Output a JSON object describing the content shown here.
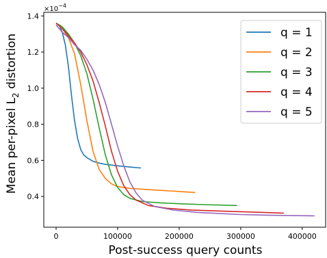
{
  "chart_data": {
    "type": "line",
    "title": "",
    "xlabel": "Post-success query counts",
    "ylabel_main": "Mean per-pixel L",
    "ylabel_sub": "2",
    "ylabel_tail": " distortion",
    "y_offset_base": "×10",
    "y_offset_exp": "−4",
    "xlim": [
      -20000,
      438000
    ],
    "ylim": [
      0.23,
      1.42
    ],
    "xticks": [
      0,
      100000,
      200000,
      300000,
      400000
    ],
    "xtick_labels": [
      "0",
      "100000",
      "200000",
      "300000",
      "400000"
    ],
    "yticks": [
      0.4,
      0.6,
      0.8,
      1.0,
      1.2,
      1.4
    ],
    "ytick_labels": [
      "0.4",
      "0.6",
      "0.8",
      "1.0",
      "1.2",
      "1.4"
    ],
    "grid": false,
    "legend_position": "top-right",
    "series": [
      {
        "name": "q = 1",
        "color": "#1f77b4",
        "x": [
          0,
          5000,
          10000,
          15000,
          20000,
          25000,
          30000,
          35000,
          40000,
          45000,
          50000,
          60000,
          70000,
          80000,
          100000,
          120000,
          138000
        ],
        "y": [
          1.36,
          1.35,
          1.31,
          1.24,
          1.12,
          0.96,
          0.82,
          0.72,
          0.66,
          0.63,
          0.615,
          0.595,
          0.585,
          0.578,
          0.57,
          0.563,
          0.558
        ]
      },
      {
        "name": "q = 2",
        "color": "#ff7f0e",
        "x": [
          0,
          10000,
          20000,
          30000,
          40000,
          50000,
          60000,
          70000,
          80000,
          90000,
          100000,
          120000,
          150000,
          180000,
          200000,
          226000
        ],
        "y": [
          1.36,
          1.33,
          1.28,
          1.19,
          1.02,
          0.82,
          0.65,
          0.55,
          0.5,
          0.47,
          0.455,
          0.445,
          0.438,
          0.432,
          0.428,
          0.422
        ]
      },
      {
        "name": "q = 3",
        "color": "#2ca02c",
        "x": [
          0,
          10000,
          20000,
          30000,
          40000,
          50000,
          60000,
          70000,
          80000,
          90000,
          100000,
          110000,
          120000,
          140000,
          170000,
          200000,
          240000,
          294000
        ],
        "y": [
          1.36,
          1.34,
          1.3,
          1.25,
          1.18,
          1.08,
          0.94,
          0.78,
          0.63,
          0.52,
          0.45,
          0.41,
          0.39,
          0.372,
          0.365,
          0.36,
          0.355,
          0.35
        ]
      },
      {
        "name": "q = 4",
        "color": "#d62728",
        "x": [
          0,
          10000,
          20000,
          30000,
          40000,
          50000,
          60000,
          70000,
          80000,
          90000,
          100000,
          110000,
          120000,
          130000,
          150000,
          180000,
          220000,
          280000,
          370000
        ],
        "y": [
          1.36,
          1.33,
          1.29,
          1.25,
          1.2,
          1.13,
          1.04,
          0.92,
          0.79,
          0.65,
          0.54,
          0.46,
          0.41,
          0.38,
          0.35,
          0.335,
          0.325,
          0.318,
          0.308
        ]
      },
      {
        "name": "q = 5",
        "color": "#9467bd",
        "x": [
          0,
          10000,
          20000,
          30000,
          40000,
          50000,
          60000,
          70000,
          80000,
          90000,
          100000,
          110000,
          120000,
          130000,
          140000,
          160000,
          190000,
          230000,
          300000,
          350000,
          420000
        ],
        "y": [
          1.35,
          1.31,
          1.28,
          1.24,
          1.21,
          1.16,
          1.1,
          1.02,
          0.92,
          0.8,
          0.68,
          0.57,
          0.48,
          0.42,
          0.38,
          0.345,
          0.325,
          0.312,
          0.3,
          0.296,
          0.293
        ]
      }
    ]
  }
}
